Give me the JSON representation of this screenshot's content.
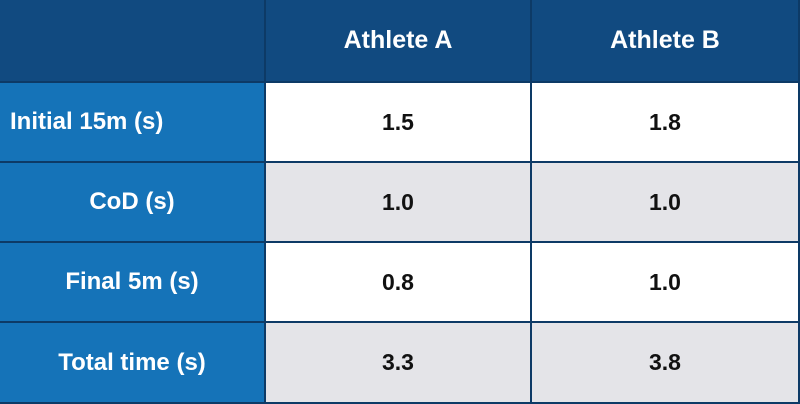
{
  "header": {
    "columns": [
      "Athlete A",
      "Athlete B"
    ]
  },
  "rows": [
    {
      "label": "Initial 15m (s)",
      "athlete_a": "1.5",
      "athlete_b": "1.8"
    },
    {
      "label": "CoD (s)",
      "athlete_a": "1.0",
      "athlete_b": "1.0"
    },
    {
      "label": "Final 5m (s)",
      "athlete_a": "0.8",
      "athlete_b": "1.0"
    },
    {
      "label": "Total time (s)",
      "athlete_a": "3.3",
      "athlete_b": "3.8"
    }
  ],
  "colors": {
    "header_bg": "#114a80",
    "row_label_bg": "#1573b8",
    "row_alt_bg": "#e4e4e8",
    "border": "#0d3a66"
  }
}
